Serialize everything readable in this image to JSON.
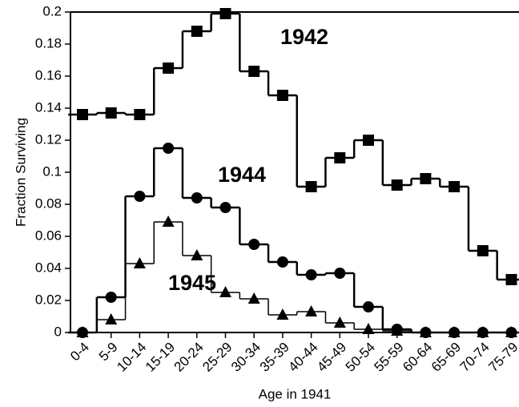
{
  "chart_data": {
    "type": "step",
    "x_label": "Age in 1941",
    "y_label": "Fraction Surviving",
    "categories": [
      "0-4",
      "5-9",
      "10-14",
      "15-19",
      "20-24",
      "25-29",
      "30-34",
      "35-39",
      "40-44",
      "45-49",
      "50-54",
      "55-59",
      "60-64",
      "65-69",
      "70-74",
      "75-79"
    ],
    "ylim": [
      0,
      0.2
    ],
    "yticks": [
      0,
      0.02,
      0.04,
      0.06,
      0.08,
      0.1,
      0.12,
      0.14,
      0.16,
      0.18,
      0.2
    ],
    "series": [
      {
        "name": "1942",
        "color": "#000000",
        "marker": "square",
        "values": [
          0.136,
          0.137,
          0.136,
          0.165,
          0.188,
          0.199,
          0.163,
          0.148,
          0.091,
          0.109,
          0.12,
          0.092,
          0.096,
          0.091,
          0.051,
          0.033
        ]
      },
      {
        "name": "1944",
        "color": "#000000",
        "marker": "circle",
        "values": [
          0,
          0.022,
          0.085,
          0.115,
          0.084,
          0.078,
          0.055,
          0.044,
          0.036,
          0.037,
          0.016,
          0.002,
          0,
          0,
          0,
          0
        ]
      },
      {
        "name": "1945",
        "color": "#000000",
        "marker": "triangle",
        "values": [
          0,
          0.008,
          0.043,
          0.069,
          0.048,
          0.025,
          0.021,
          0.011,
          0.013,
          0.006,
          0.002,
          0.001,
          0,
          0,
          0,
          0
        ]
      }
    ]
  }
}
